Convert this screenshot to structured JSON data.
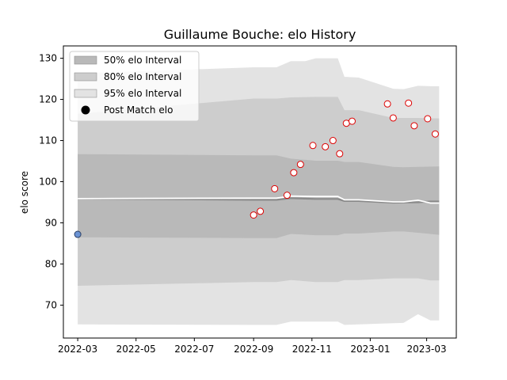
{
  "chart_data": {
    "type": "scatter",
    "title": "Guillaume Bouche: elo History",
    "xlabel": "",
    "ylabel": "elo score",
    "xlim": [
      "2022-02-14",
      "2023-04-01"
    ],
    "ylim": [
      62,
      133
    ],
    "x_ticks": [
      "2022-03",
      "2022-05",
      "2022-07",
      "2022-09",
      "2022-11",
      "2023-01",
      "2023-03"
    ],
    "y_ticks": [
      70,
      80,
      90,
      100,
      110,
      120,
      130
    ],
    "grid": false,
    "legend_position": "upper-left",
    "legend": [
      {
        "label": "50% elo Interval",
        "kind": "band",
        "key": "band50"
      },
      {
        "label": "80% elo Interval",
        "kind": "band",
        "key": "band80"
      },
      {
        "label": "95% elo Interval",
        "kind": "band",
        "key": "band95"
      },
      {
        "label": "Post Match elo",
        "kind": "marker"
      }
    ],
    "colors": {
      "band95": "#e3e3e3",
      "band80": "#cdcdcd",
      "band50": "#b9b9b9",
      "mean_line": "#8a8a8a",
      "post_line": "#ffffff",
      "point_edge": "#dd0000",
      "point_fill": "#ffffff",
      "initial_point_fill": "#6b93d4",
      "initial_point_edge": "#2a3f66",
      "legend_marker": "#000000"
    },
    "bands": {
      "band95": [
        {
          "x": "2022-03-01",
          "low": 65.3,
          "high": 126.3
        },
        {
          "x": "2022-09-01",
          "low": 65.2,
          "high": 127.8
        },
        {
          "x": "2022-09-25",
          "low": 65.2,
          "high": 127.8
        },
        {
          "x": "2022-10-10",
          "low": 66.0,
          "high": 129.3
        },
        {
          "x": "2022-10-25",
          "low": 66.0,
          "high": 129.3
        },
        {
          "x": "2022-11-05",
          "low": 66.0,
          "high": 130.0
        },
        {
          "x": "2022-11-28",
          "low": 66.0,
          "high": 130.0
        },
        {
          "x": "2022-12-05",
          "low": 65.2,
          "high": 125.5
        },
        {
          "x": "2022-12-20",
          "low": 65.3,
          "high": 125.3
        },
        {
          "x": "2023-01-25",
          "low": 65.6,
          "high": 122.6
        },
        {
          "x": "2023-02-05",
          "low": 65.7,
          "high": 122.5
        },
        {
          "x": "2023-02-20",
          "low": 67.8,
          "high": 123.3
        },
        {
          "x": "2023-03-05",
          "low": 66.3,
          "high": 123.2
        },
        {
          "x": "2023-03-14",
          "low": 66.3,
          "high": 123.2
        }
      ],
      "band80": [
        {
          "x": "2022-03-01",
          "low": 74.7,
          "high": 116.5
        },
        {
          "x": "2022-09-01",
          "low": 75.6,
          "high": 120.2
        },
        {
          "x": "2022-09-25",
          "low": 75.6,
          "high": 120.2
        },
        {
          "x": "2022-10-10",
          "low": 76.1,
          "high": 120.5
        },
        {
          "x": "2022-11-05",
          "low": 75.6,
          "high": 120.6
        },
        {
          "x": "2022-11-28",
          "low": 75.6,
          "high": 120.6
        },
        {
          "x": "2022-12-05",
          "low": 76.1,
          "high": 117.4
        },
        {
          "x": "2022-12-20",
          "low": 76.1,
          "high": 117.4
        },
        {
          "x": "2023-01-25",
          "low": 76.5,
          "high": 115.5
        },
        {
          "x": "2023-02-20",
          "low": 76.5,
          "high": 115.5
        },
        {
          "x": "2023-03-05",
          "low": 76.0,
          "high": 115.4
        },
        {
          "x": "2023-03-14",
          "low": 76.0,
          "high": 115.4
        }
      ],
      "band50": [
        {
          "x": "2022-03-01",
          "low": 86.5,
          "high": 106.7
        },
        {
          "x": "2022-09-01",
          "low": 86.3,
          "high": 106.4
        },
        {
          "x": "2022-09-25",
          "low": 86.3,
          "high": 106.4
        },
        {
          "x": "2022-10-10",
          "low": 87.3,
          "high": 105.6
        },
        {
          "x": "2022-11-05",
          "low": 87.0,
          "high": 105.1
        },
        {
          "x": "2022-11-28",
          "low": 87.0,
          "high": 105.1
        },
        {
          "x": "2022-12-05",
          "low": 87.4,
          "high": 104.8
        },
        {
          "x": "2022-12-20",
          "low": 87.4,
          "high": 104.8
        },
        {
          "x": "2023-01-25",
          "low": 87.9,
          "high": 103.6
        },
        {
          "x": "2023-02-05",
          "low": 87.9,
          "high": 103.5
        },
        {
          "x": "2023-02-20",
          "low": 87.6,
          "high": 103.6
        },
        {
          "x": "2023-03-14",
          "low": 87.1,
          "high": 103.7
        }
      ]
    },
    "mean_line": [
      {
        "x": "2022-03-01",
        "y": 95.9
      },
      {
        "x": "2022-09-01",
        "y": 95.6
      },
      {
        "x": "2022-09-25",
        "y": 95.6
      },
      {
        "x": "2022-10-10",
        "y": 96.0
      },
      {
        "x": "2022-11-05",
        "y": 95.8
      },
      {
        "x": "2022-11-28",
        "y": 95.8
      },
      {
        "x": "2022-12-05",
        "y": 95.3
      },
      {
        "x": "2022-12-20",
        "y": 95.3
      },
      {
        "x": "2023-01-25",
        "y": 94.9
      },
      {
        "x": "2023-02-20",
        "y": 95.0
      },
      {
        "x": "2023-03-05",
        "y": 95.2
      },
      {
        "x": "2023-03-14",
        "y": 95.2
      }
    ],
    "post_line": [
      {
        "x": "2022-03-01",
        "y": 95.9
      },
      {
        "x": "2022-09-01",
        "y": 96.0
      },
      {
        "x": "2022-09-25",
        "y": 96.0
      },
      {
        "x": "2022-10-10",
        "y": 96.5
      },
      {
        "x": "2022-11-05",
        "y": 96.4
      },
      {
        "x": "2022-11-28",
        "y": 96.4
      },
      {
        "x": "2022-12-05",
        "y": 95.6
      },
      {
        "x": "2022-12-20",
        "y": 95.6
      },
      {
        "x": "2023-01-25",
        "y": 95.1
      },
      {
        "x": "2023-02-05",
        "y": 95.1
      },
      {
        "x": "2023-02-20",
        "y": 95.5
      },
      {
        "x": "2023-03-05",
        "y": 94.8
      },
      {
        "x": "2023-03-14",
        "y": 94.8
      }
    ],
    "initial_point": {
      "x": "2022-03-01",
      "y": 87.2
    },
    "series": [
      {
        "name": "Post Match elo",
        "points": [
          {
            "x": "2022-09-01",
            "y": 91.9
          },
          {
            "x": "2022-09-08",
            "y": 92.8
          },
          {
            "x": "2022-09-23",
            "y": 98.3
          },
          {
            "x": "2022-10-06",
            "y": 96.7
          },
          {
            "x": "2022-10-13",
            "y": 102.2
          },
          {
            "x": "2022-10-20",
            "y": 104.2
          },
          {
            "x": "2022-11-02",
            "y": 108.8
          },
          {
            "x": "2022-11-15",
            "y": 108.5
          },
          {
            "x": "2022-11-23",
            "y": 110.0
          },
          {
            "x": "2022-11-30",
            "y": 106.8
          },
          {
            "x": "2022-12-07",
            "y": 114.2
          },
          {
            "x": "2022-12-13",
            "y": 114.7
          },
          {
            "x": "2023-01-19",
            "y": 118.9
          },
          {
            "x": "2023-01-25",
            "y": 115.5
          },
          {
            "x": "2023-02-10",
            "y": 119.1
          },
          {
            "x": "2023-02-16",
            "y": 113.6
          },
          {
            "x": "2023-03-02",
            "y": 115.3
          },
          {
            "x": "2023-03-10",
            "y": 111.6
          }
        ]
      }
    ]
  }
}
